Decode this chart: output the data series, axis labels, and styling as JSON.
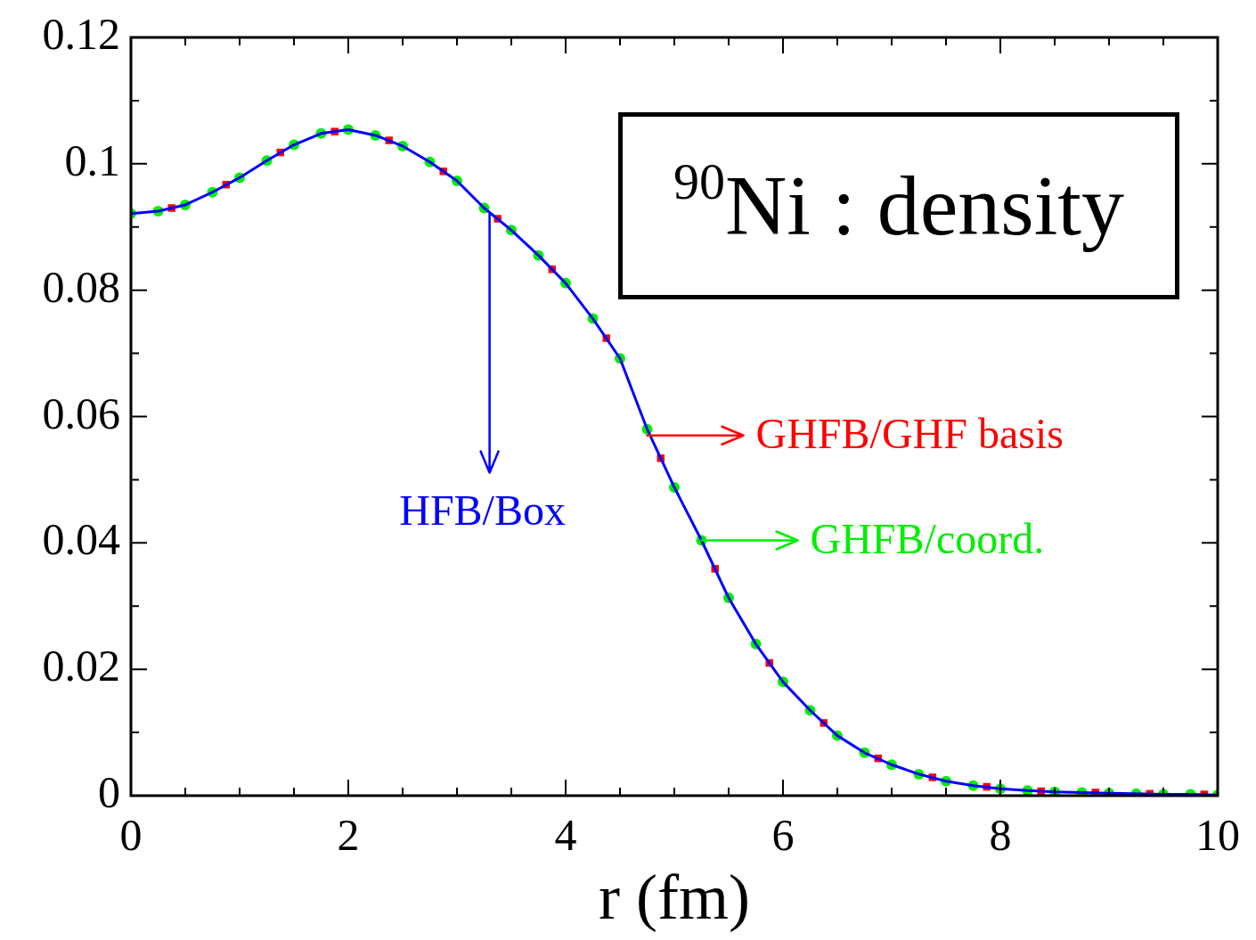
{
  "chart_data": {
    "type": "line",
    "title": "$^{90}$Ni : density",
    "xlabel": "r (fm)",
    "xlim": [
      0,
      10
    ],
    "ylim": [
      0,
      0.12
    ],
    "xticks": [
      0,
      {
        "value": 0.5,
        "label": null
      },
      {
        "value": 1,
        "label": null
      },
      {
        "value": 1.5,
        "label": null
      },
      2,
      {
        "value": 2.5,
        "label": null
      },
      {
        "value": 3,
        "label": null
      },
      {
        "value": 3.5,
        "label": null
      },
      4,
      {
        "value": 4.5,
        "label": null
      },
      {
        "value": 5,
        "label": null
      },
      {
        "value": 5.5,
        "label": null
      },
      6,
      {
        "value": 6.5,
        "label": null
      },
      {
        "value": 7,
        "label": null
      },
      {
        "value": 7.5,
        "label": null
      },
      8,
      {
        "value": 8.5,
        "label": null
      },
      {
        "value": 9,
        "label": null
      },
      {
        "value": 9.5,
        "label": null
      },
      10
    ],
    "yticks": [
      0,
      {
        "value": 0.01,
        "label": null
      },
      0.02,
      {
        "value": 0.03,
        "label": null
      },
      0.04,
      {
        "value": 0.05,
        "label": null
      },
      0.06,
      {
        "value": 0.07,
        "label": null
      },
      0.08,
      {
        "value": 0.09,
        "label": null
      },
      0.1,
      {
        "value": 0.11,
        "label": null
      },
      0.12
    ],
    "grid": false,
    "legend": false,
    "series": [
      {
        "type": "line",
        "marker": "none",
        "color": "#0000ff",
        "x": [
          0,
          0.25,
          0.5,
          0.75,
          1,
          1.25,
          1.5,
          1.75,
          2,
          2.25,
          2.5,
          2.75,
          3,
          3.25,
          3.5,
          3.75,
          4,
          4.25,
          4.5,
          4.75,
          5,
          5.25,
          5.5,
          5.75,
          6,
          6.25,
          6.5,
          6.75,
          7,
          7.25,
          7.5,
          7.75,
          8,
          8.25,
          8.5,
          8.75,
          9,
          9.25,
          9.5,
          9.75,
          10
        ],
        "values": [
          0.0921,
          0.0925,
          0.0935,
          0.0955,
          0.0978,
          0.1005,
          0.103,
          0.1048,
          0.1054,
          0.1045,
          0.1028,
          0.1003,
          0.0973,
          0.093,
          0.0895,
          0.0855,
          0.0811,
          0.0755,
          0.0692,
          0.058,
          0.0488,
          0.0404,
          0.0313,
          0.024,
          0.018,
          0.0135,
          0.0095,
          0.0068,
          0.0049,
          0.0034,
          0.0023,
          0.0016,
          0.0011,
          0.0008,
          0.0006,
          0.0005,
          0.0004,
          0.0003,
          0.0002,
          0.0002,
          0.0001
        ]
      },
      {
        "type": "scatter",
        "marker": "square",
        "color": "#ff0000",
        "x": [
          0.375,
          0.875,
          1.375,
          1.875,
          2.375,
          2.875,
          3.375,
          3.875,
          4.375,
          4.875,
          5.375,
          5.875,
          6.375,
          6.875,
          7.375,
          7.875,
          8.375,
          8.875,
          9.375,
          9.875
        ],
        "values": [
          0.093,
          0.0967,
          0.1018,
          0.1051,
          0.1037,
          0.0988,
          0.0913,
          0.0833,
          0.0724,
          0.0534,
          0.0359,
          0.021,
          0.0115,
          0.0059,
          0.0029,
          0.0014,
          0.0007,
          0.0005,
          0.0003,
          0.0002
        ]
      },
      {
        "type": "scatter",
        "marker": "circle",
        "color": "#00ee00",
        "x": [
          0,
          0.25,
          0.5,
          0.75,
          1,
          1.25,
          1.5,
          1.75,
          2,
          2.25,
          2.5,
          2.75,
          3,
          3.25,
          3.5,
          3.75,
          4,
          4.25,
          4.5,
          4.75,
          5,
          5.25,
          5.5,
          5.75,
          6,
          6.25,
          6.5,
          6.75,
          7,
          7.25,
          7.5,
          7.75,
          8,
          8.25,
          8.5,
          8.75,
          9,
          9.25,
          9.5,
          9.75,
          10
        ],
        "values": [
          0.0921,
          0.0925,
          0.0935,
          0.0955,
          0.0978,
          0.1005,
          0.103,
          0.1048,
          0.1054,
          0.1045,
          0.1028,
          0.1003,
          0.0973,
          0.093,
          0.0895,
          0.0855,
          0.0811,
          0.0755,
          0.0692,
          0.058,
          0.0488,
          0.0404,
          0.0313,
          0.024,
          0.018,
          0.0135,
          0.0095,
          0.0068,
          0.0049,
          0.0034,
          0.0023,
          0.0016,
          0.0011,
          0.0008,
          0.0006,
          0.0005,
          0.0004,
          0.0003,
          0.0002,
          0.0002,
          0.0001
        ]
      }
    ],
    "annotations": [
      {
        "text": "HFB/Box",
        "x": 3.3,
        "y": 0.092
      },
      {
        "text": "GHFB/GHF basis",
        "x": 4.75,
        "y": 0.057
      },
      {
        "text": "GHFB/coord.",
        "x": 5.25,
        "y": 0.0404
      }
    ]
  }
}
